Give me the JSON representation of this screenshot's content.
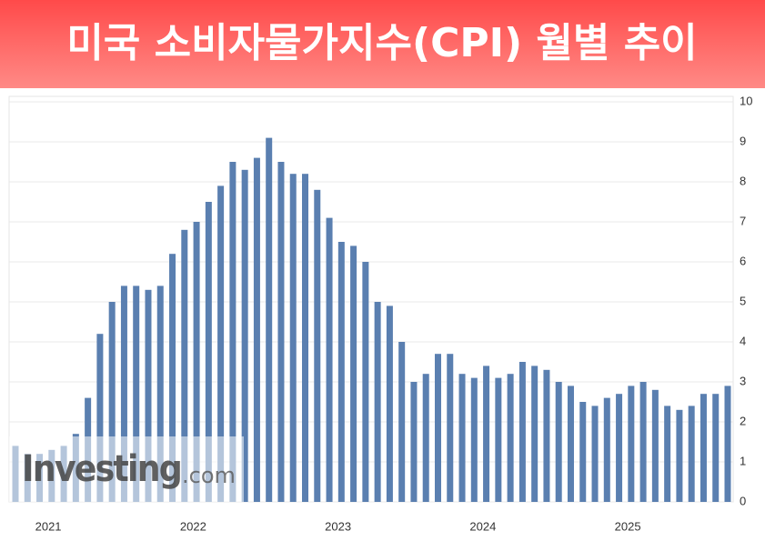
{
  "chart_data": {
    "type": "bar",
    "title": "미국 소비자물가지수(CPI) 월별 추이",
    "categories": [
      null,
      null,
      null,
      null,
      "2021",
      null,
      null,
      null,
      null,
      null,
      null,
      null,
      null,
      null,
      null,
      null,
      "2022",
      null,
      null,
      null,
      null,
      null,
      null,
      null,
      null,
      null,
      null,
      null,
      "2023",
      null,
      null,
      null,
      null,
      null,
      null,
      null,
      null,
      null,
      null,
      null,
      "2024",
      null,
      null,
      null,
      null,
      null,
      null,
      null,
      null,
      null,
      null,
      null,
      "2025",
      null,
      null,
      null,
      null,
      null,
      null,
      null
    ],
    "values": [
      1.4,
      1.2,
      1.2,
      1.3,
      1.4,
      1.7,
      2.6,
      4.2,
      5.0,
      5.4,
      5.4,
      5.3,
      5.4,
      6.2,
      6.8,
      7.0,
      7.5,
      7.9,
      8.5,
      8.3,
      8.6,
      9.1,
      8.5,
      8.2,
      8.2,
      7.8,
      7.1,
      6.5,
      6.4,
      6.0,
      5.0,
      4.9,
      4.0,
      3.0,
      3.2,
      3.7,
      3.7,
      3.2,
      3.1,
      3.4,
      3.1,
      3.2,
      3.5,
      3.4,
      3.3,
      3.0,
      2.9,
      2.5,
      2.4,
      2.6,
      2.7,
      2.9,
      3.0,
      2.8,
      2.4,
      2.3,
      2.4,
      2.7,
      2.7,
      2.9
    ],
    "color": "#5a7fb0",
    "ylim": [
      0,
      10
    ],
    "yticks": [
      0,
      1,
      2,
      3,
      4,
      5,
      6,
      7,
      8,
      9,
      10
    ],
    "grid": true,
    "watermark": {
      "brand": "Investing",
      "suffix": ".com"
    }
  }
}
